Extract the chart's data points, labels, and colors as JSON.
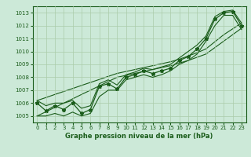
{
  "title": "Graphe pression niveau de la mer (hPa)",
  "x": [
    0,
    1,
    2,
    3,
    4,
    5,
    6,
    7,
    8,
    9,
    10,
    11,
    12,
    13,
    14,
    15,
    16,
    17,
    18,
    19,
    20,
    21,
    22,
    23
  ],
  "y_main": [
    1006.0,
    1005.4,
    1005.8,
    1005.5,
    1006.0,
    1005.2,
    1005.5,
    1007.3,
    1007.5,
    1007.1,
    1008.0,
    1008.2,
    1008.5,
    1008.3,
    1008.5,
    1008.7,
    1009.3,
    1009.6,
    1010.2,
    1011.0,
    1012.5,
    1013.0,
    1013.1,
    1012.0
  ],
  "y_min": [
    1005.0,
    1005.0,
    1005.2,
    1005.0,
    1005.3,
    1005.0,
    1005.2,
    1006.5,
    1007.0,
    1007.0,
    1007.8,
    1008.0,
    1008.2,
    1008.0,
    1008.2,
    1008.5,
    1009.0,
    1009.3,
    1009.8,
    1010.8,
    1012.0,
    1012.8,
    1012.8,
    1011.7
  ],
  "y_max": [
    1006.2,
    1005.8,
    1006.0,
    1006.0,
    1006.2,
    1005.6,
    1005.8,
    1007.5,
    1007.8,
    1007.4,
    1008.2,
    1008.4,
    1008.7,
    1008.6,
    1008.8,
    1009.0,
    1009.5,
    1010.0,
    1010.5,
    1011.2,
    1012.7,
    1013.1,
    1013.2,
    1012.2
  ],
  "y_trend_lo": [
    1005.0,
    1005.33,
    1005.67,
    1006.0,
    1006.33,
    1006.67,
    1007.0,
    1007.33,
    1007.67,
    1008.0,
    1008.15,
    1008.3,
    1008.45,
    1008.6,
    1008.75,
    1008.9,
    1009.1,
    1009.3,
    1009.55,
    1009.8,
    1010.3,
    1010.8,
    1011.3,
    1011.8
  ],
  "y_trend_hi": [
    1006.2,
    1006.43,
    1006.67,
    1006.9,
    1007.13,
    1007.37,
    1007.6,
    1007.83,
    1008.07,
    1008.3,
    1008.45,
    1008.6,
    1008.75,
    1008.9,
    1009.05,
    1009.2,
    1009.4,
    1009.65,
    1009.9,
    1010.2,
    1010.75,
    1011.3,
    1011.75,
    1012.2
  ],
  "ylim": [
    1004.5,
    1013.5
  ],
  "yticks": [
    1005,
    1006,
    1007,
    1008,
    1009,
    1010,
    1011,
    1012,
    1013
  ],
  "xticks": [
    0,
    1,
    2,
    3,
    4,
    5,
    6,
    7,
    8,
    9,
    10,
    11,
    12,
    13,
    14,
    15,
    16,
    17,
    18,
    19,
    20,
    21,
    22,
    23
  ],
  "line_color": "#1a5c1a",
  "bg_color": "#cce9d8",
  "grid_color": "#aaccaa",
  "marker": "*",
  "marker_size": 3.5,
  "xlabel_fontsize": 6.0,
  "tick_fontsize": 5.0
}
